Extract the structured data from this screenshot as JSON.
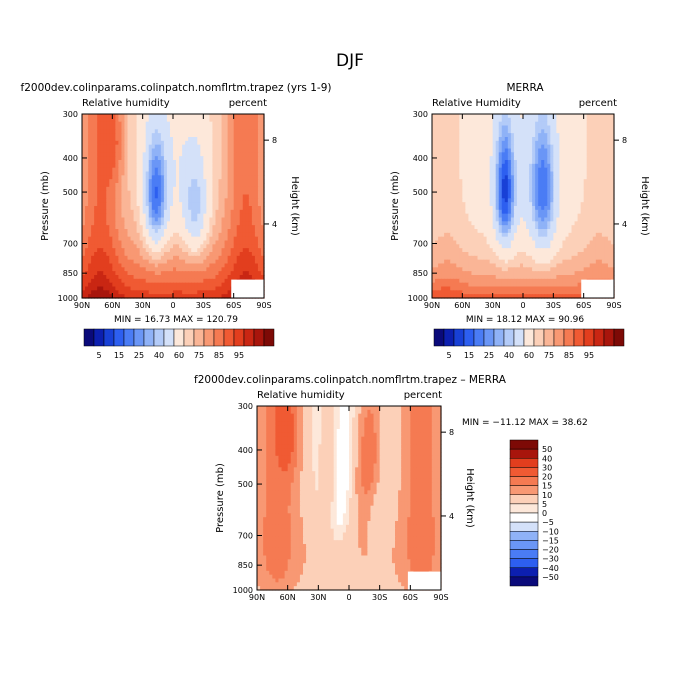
{
  "figure_title": "DJF",
  "colors": {
    "scale_main": [
      "#0a0a7a",
      "#0c1fb0",
      "#1840d6",
      "#2d5ff0",
      "#4a7cf5",
      "#6a96f6",
      "#8fb2f7",
      "#b3cbf8",
      "#d4e1f9",
      "#fde8da",
      "#fcd0b8",
      "#fab596",
      "#f89873",
      "#f57a52",
      "#f05a33",
      "#e23e1e",
      "#c92613",
      "#a8150c",
      "#7d0a06"
    ],
    "scale_diff": [
      "#0a0a7a",
      "#0c1fb0",
      "#1840d6",
      "#2d5ff0",
      "#4a7cf5",
      "#6a96f6",
      "#8fb2f7",
      "#b3cbf8",
      "#d4e1f9",
      "#ffffff",
      "#fde8da",
      "#fcd0b8",
      "#fab596",
      "#f89873",
      "#f57a52",
      "#f05a33",
      "#e23e1e",
      "#c92613",
      "#a8150c",
      "#7d0a06"
    ]
  },
  "chart_data": [
    {
      "type": "heatmap",
      "id": "model",
      "title": "f2000dev.colinparams.colinpatch.nomflrtm.trapez (yrs 1-9)",
      "left_label": "Relative humidity",
      "right_label": "percent",
      "ylabel": "Pressure (mb)",
      "y2label": "Height (km)",
      "x_ticks": [
        "90N",
        "60N",
        "30N",
        "0",
        "30S",
        "60S",
        "90S"
      ],
      "x_range": [
        90,
        -90
      ],
      "y_ticks": [
        "300",
        "400",
        "500",
        "700",
        "850",
        "1000"
      ],
      "y_range": [
        1000,
        300
      ],
      "height_ticks": [
        "8",
        "4"
      ],
      "min_max": "MIN =   16.73   MAX =  120.79",
      "min": 16.73,
      "max": 120.79
    },
    {
      "type": "heatmap",
      "id": "obs",
      "title": "MERRA",
      "left_label": "Relative Humidity",
      "right_label": "percent",
      "ylabel": "Pressure (mb)",
      "y2label": "Height (km)",
      "x_ticks": [
        "90N",
        "60N",
        "30N",
        "0",
        "30S",
        "60S",
        "90S"
      ],
      "x_range": [
        90,
        -90
      ],
      "y_ticks": [
        "300",
        "400",
        "500",
        "700",
        "850",
        "1000"
      ],
      "y_range": [
        1000,
        300
      ],
      "height_ticks": [
        "8",
        "4"
      ],
      "min_max": "MIN =   18.12   MAX =   90.96",
      "min": 18.12,
      "max": 90.96
    },
    {
      "type": "heatmap",
      "id": "diff",
      "title": "f2000dev.colinparams.colinpatch.nomflrtm.trapez – MERRA",
      "left_label": "Relative humidity",
      "right_label": "percent",
      "ylabel": "Pressure (mb)",
      "y2label": "Height (km)",
      "x_ticks": [
        "90N",
        "60N",
        "30N",
        "0",
        "30S",
        "60S",
        "90S"
      ],
      "x_range": [
        90,
        -90
      ],
      "y_ticks": [
        "300",
        "400",
        "500",
        "700",
        "850",
        "1000"
      ],
      "y_range": [
        1000,
        300
      ],
      "height_ticks": [
        "8",
        "4"
      ],
      "min_max": "MIN =  −11.12   MAX =   38.62",
      "min": -11.12,
      "max": 38.62
    }
  ],
  "legend_main": {
    "labels": [
      "5",
      "15",
      "25",
      "40",
      "60",
      "75",
      "85",
      "95"
    ],
    "levels": [
      5,
      10,
      15,
      20,
      25,
      30,
      35,
      40,
      50,
      60,
      65,
      70,
      75,
      80,
      85,
      90,
      95,
      100
    ]
  },
  "legend_diff": {
    "labels": [
      "50",
      "40",
      "30",
      "20",
      "15",
      "10",
      "5",
      "0",
      "−5",
      "−10",
      "−15",
      "−20",
      "−30",
      "−40",
      "−50"
    ]
  }
}
